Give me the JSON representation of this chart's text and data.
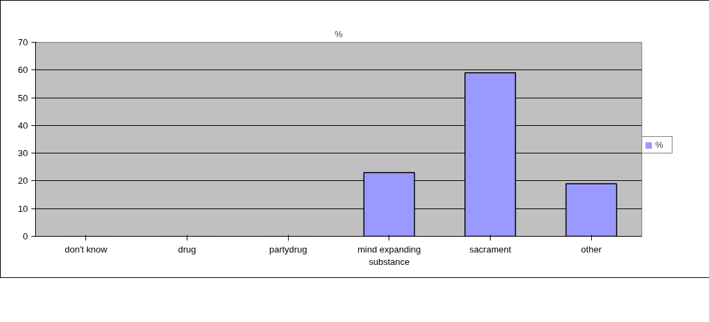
{
  "chart_data": {
    "type": "bar",
    "title": "%",
    "categories": [
      "don't know",
      "drug",
      "partydrug",
      "mind expanding substance",
      "sacrament",
      "other"
    ],
    "series": [
      {
        "name": "%",
        "color": "#9999ff",
        "values": [
          0,
          0,
          0,
          23,
          59,
          19
        ]
      }
    ],
    "ylim": [
      0,
      70
    ],
    "yticks": [
      0,
      10,
      20,
      30,
      40,
      50,
      60,
      70
    ],
    "grid": "y",
    "legend": "right"
  }
}
